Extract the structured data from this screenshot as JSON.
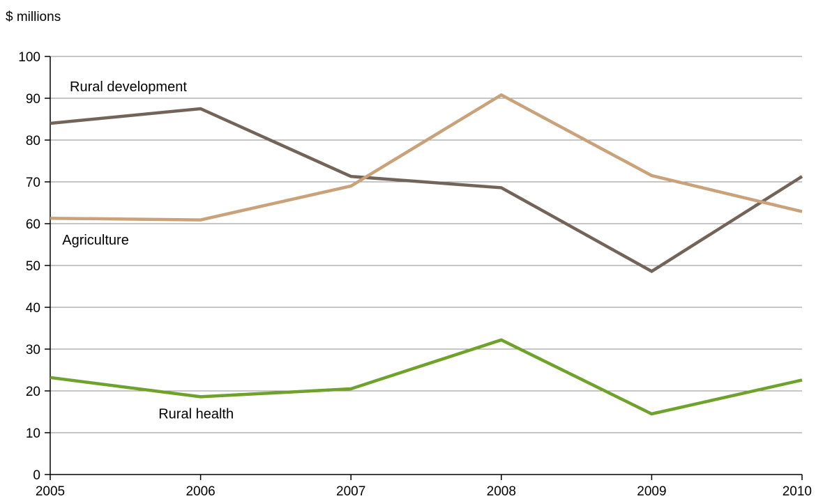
{
  "chart_data": {
    "type": "line",
    "title": "",
    "ylabel": "$ millions",
    "xlabel": "",
    "x": [
      2005,
      2006,
      2007,
      2008,
      2009,
      2010
    ],
    "x_tick_labels": [
      "2005",
      "2006",
      "2007",
      "2008",
      "2009",
      "2010"
    ],
    "xlim": [
      2005,
      2010
    ],
    "ylim": [
      0,
      100
    ],
    "y_ticks": [
      0,
      10,
      20,
      30,
      40,
      50,
      60,
      70,
      80,
      90,
      100
    ],
    "grid": true,
    "legend": "inline labels",
    "series": [
      {
        "name": "Rural development",
        "color": "#726459",
        "values": [
          84.0,
          87.5,
          71.3,
          68.6,
          48.6,
          71.3
        ]
      },
      {
        "name": "Agriculture",
        "color": "#c9a27a",
        "values": [
          61.3,
          60.9,
          69.0,
          90.8,
          71.5,
          62.9
        ]
      },
      {
        "name": "Rural health",
        "color": "#6ea22a",
        "values": [
          23.2,
          18.6,
          20.5,
          32.2,
          14.5,
          22.6
        ]
      }
    ]
  }
}
